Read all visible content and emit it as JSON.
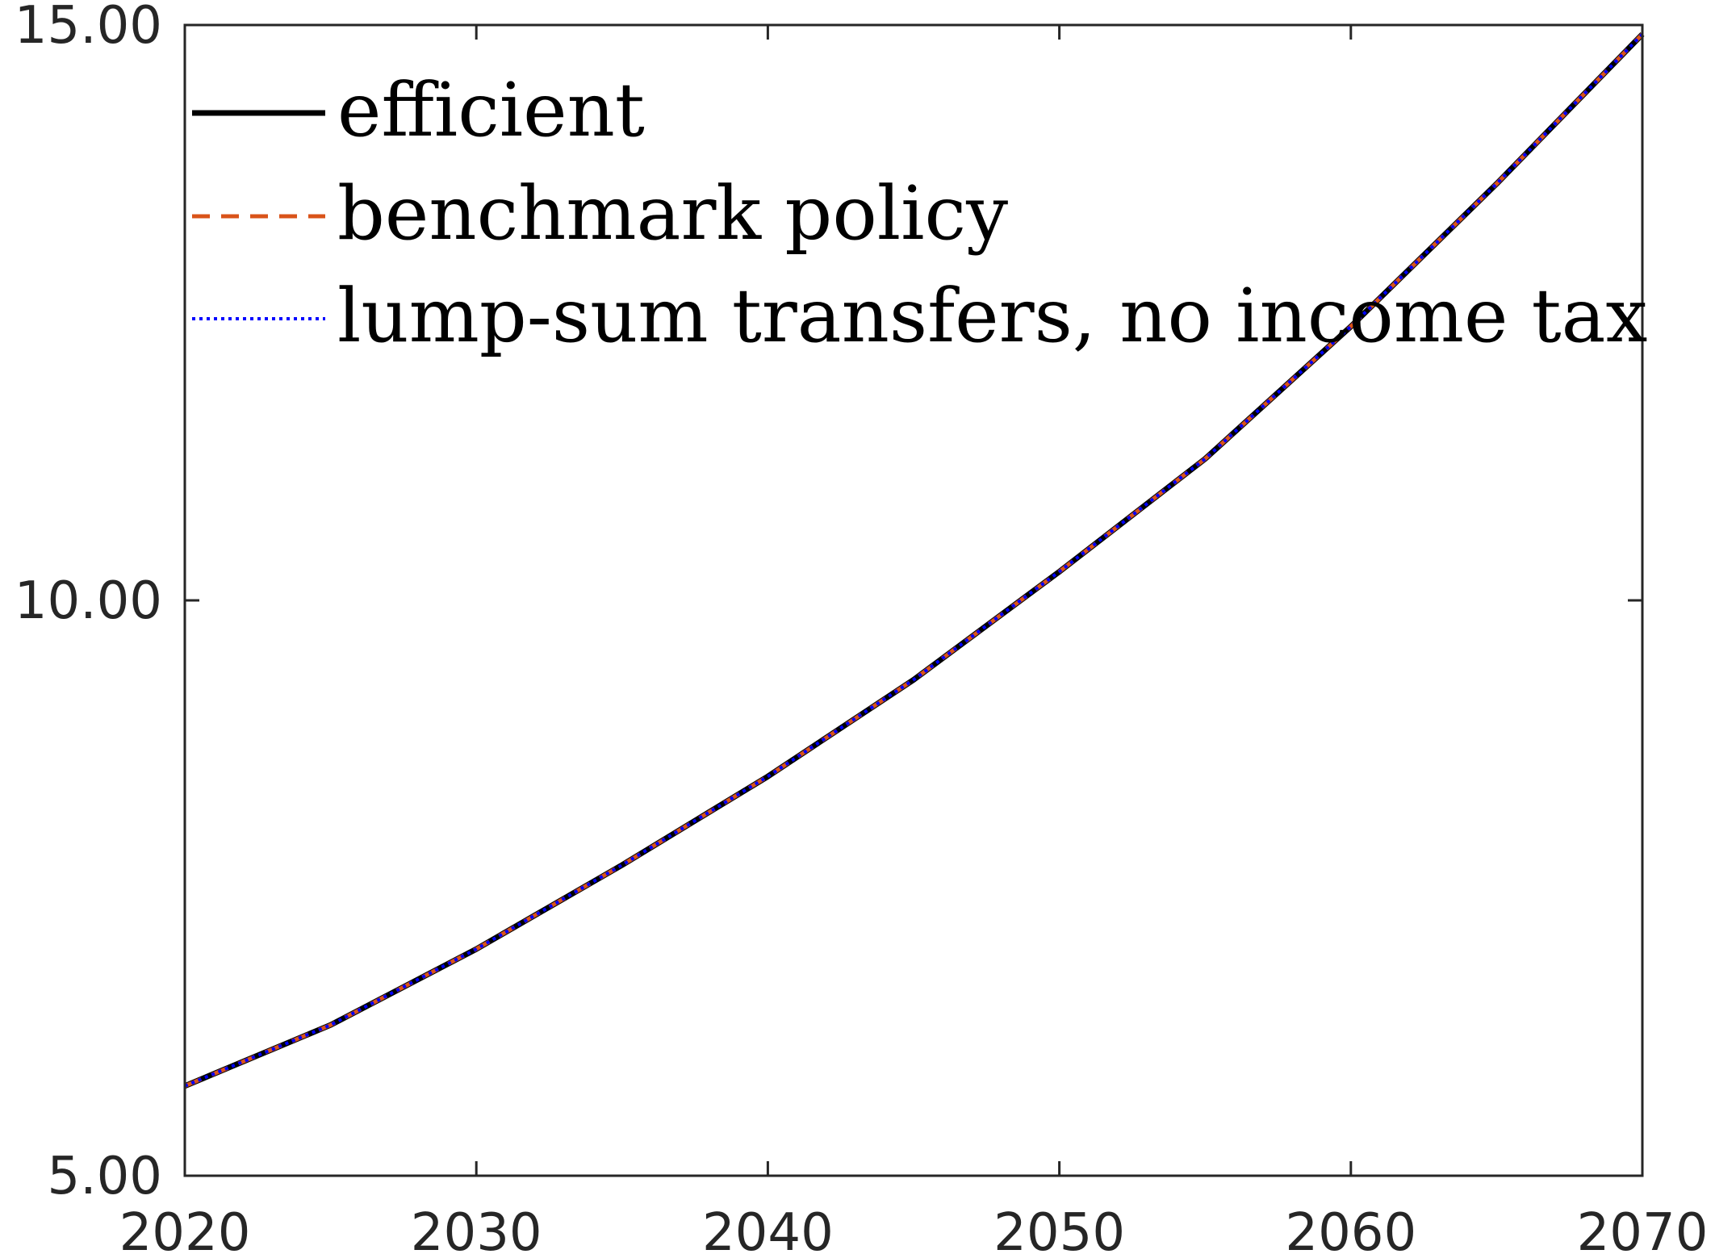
{
  "chart_data": {
    "type": "line",
    "title": "",
    "xlabel": "",
    "ylabel": "",
    "xlim": [
      2020,
      2070
    ],
    "ylim": [
      5,
      15
    ],
    "x_ticks": [
      2020,
      2030,
      2040,
      2050,
      2060,
      2070
    ],
    "x_tick_labels": [
      "2020",
      "2030",
      "2040",
      "2050",
      "2060",
      "2070"
    ],
    "y_ticks": [
      5,
      10,
      15
    ],
    "y_tick_labels": [
      "5.00",
      "10.00",
      "15.00"
    ],
    "grid": false,
    "legend_position": "top-left",
    "x": [
      2020,
      2025,
      2030,
      2035,
      2040,
      2045,
      2050,
      2055,
      2060,
      2065,
      2070
    ],
    "series": [
      {
        "name": "efficient",
        "color": "#000000",
        "style": "solid",
        "values": [
          5.78,
          6.31,
          6.97,
          7.7,
          8.47,
          9.31,
          10.25,
          11.23,
          12.38,
          13.62,
          14.92
        ]
      },
      {
        "name": "benchmark policy",
        "color": "#D95319",
        "style": "dashed",
        "values": [
          5.78,
          6.31,
          6.97,
          7.7,
          8.47,
          9.31,
          10.25,
          11.23,
          12.38,
          13.62,
          14.92
        ]
      },
      {
        "name": "lump-sum transfers, no income tax",
        "color": "#0000FF",
        "style": "dotted",
        "values": [
          5.78,
          6.31,
          6.97,
          7.7,
          8.47,
          9.31,
          10.25,
          11.23,
          12.38,
          13.62,
          14.92
        ]
      }
    ]
  }
}
